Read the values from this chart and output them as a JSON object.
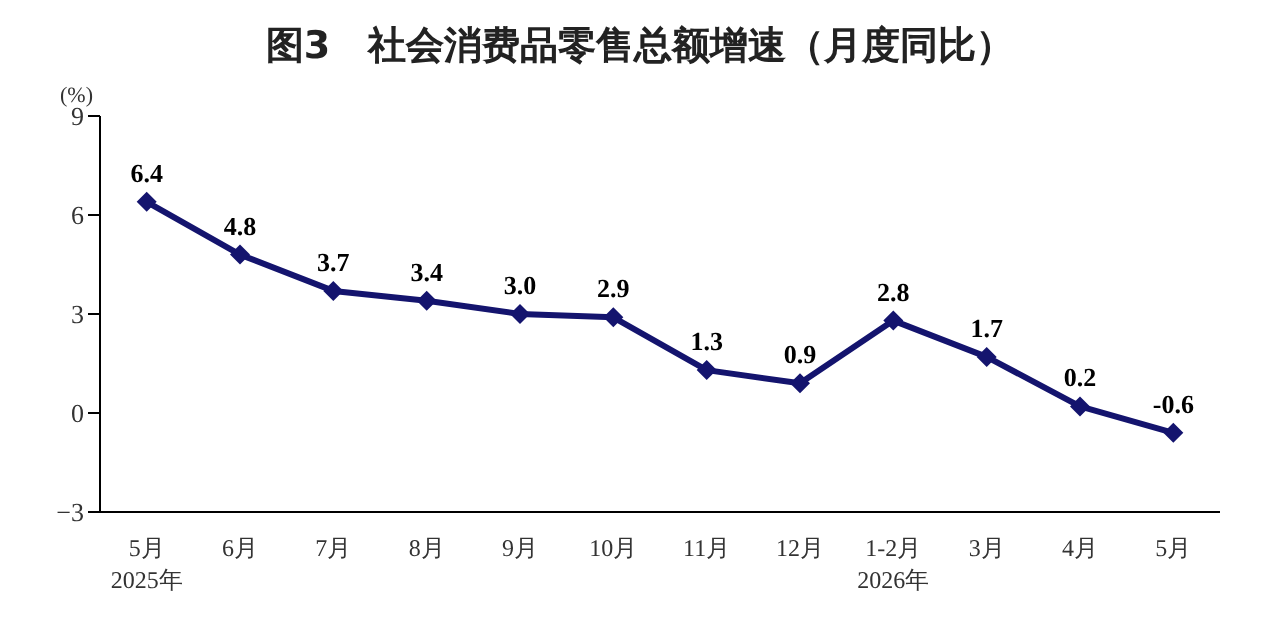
{
  "chart_data": {
    "type": "line",
    "title": "图3　社会消费品零售总额增速（月度同比）",
    "ylabel": "(%)",
    "categories": [
      "5月\n2025年",
      "6月",
      "7月",
      "8月",
      "9月",
      "10月",
      "11月",
      "12月",
      "1-2月\n2026年",
      "3月",
      "4月",
      "5月"
    ],
    "series": [
      {
        "color": "#14146e",
        "values": [
          6.4,
          4.8,
          3.7,
          3.4,
          3.0,
          2.9,
          1.3,
          0.9,
          2.8,
          1.7,
          0.2,
          -0.6
        ],
        "value_labels": [
          "6.4",
          "4.8",
          "3.7",
          "3.4",
          "3.0",
          "2.9",
          "1.3",
          "0.9",
          "2.8",
          "1.7",
          "0.2",
          "-0.6"
        ]
      }
    ],
    "ylim": [
      -3,
      9
    ],
    "yticks": [
      {
        "value": -3,
        "label": "−3"
      },
      0,
      3,
      6,
      9
    ],
    "marker": "diamond",
    "line_style": "solid"
  }
}
